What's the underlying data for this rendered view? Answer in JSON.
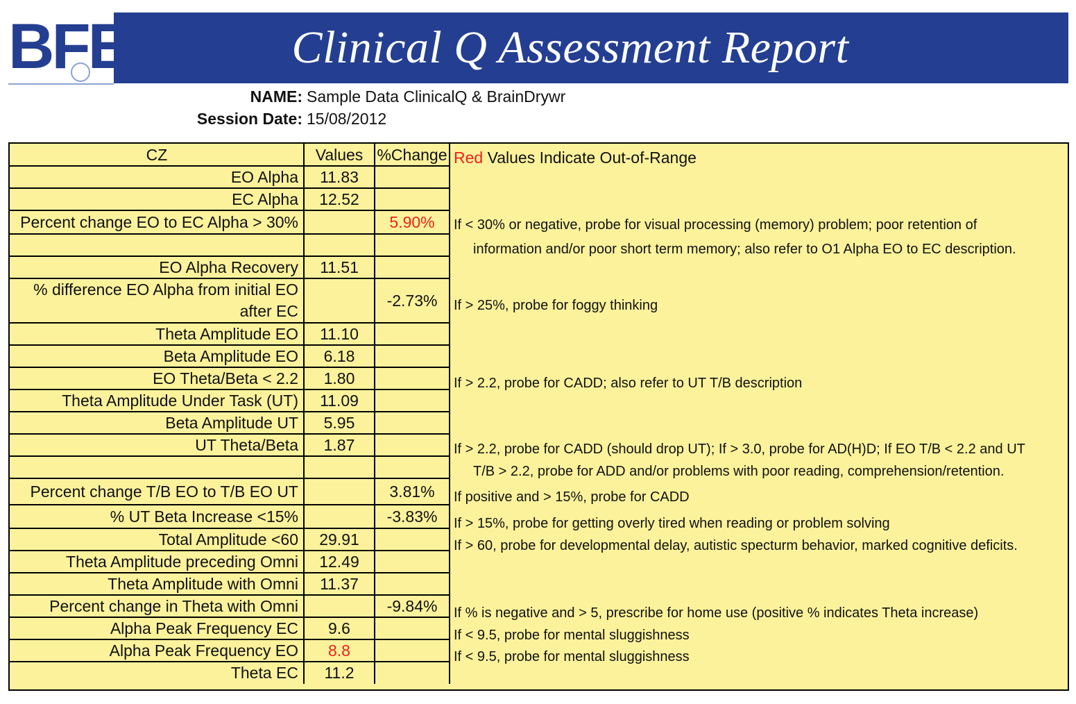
{
  "header": {
    "logo_text": "BFE",
    "title": "Clinical Q Assessment Report"
  },
  "meta": {
    "name_label": "NAME:",
    "name_value": "Sample Data ClinicalQ & BrainDrywr",
    "date_label": "Session Date:",
    "date_value": "15/08/2012"
  },
  "table": {
    "headers": {
      "site": "CZ",
      "values": "Values",
      "change": "%Change",
      "legend_red": "Red",
      "legend_rest": " Values Indicate Out-of-Range"
    },
    "rows": [
      {
        "label": "EO Alpha",
        "value": "11.83",
        "change": ""
      },
      {
        "label": "EC Alpha",
        "value": "12.52",
        "change": ""
      },
      {
        "label": "Percent change EO to EC Alpha > 30%",
        "value": "",
        "change": "5.90%",
        "change_out_of_range": true
      },
      {
        "label": "",
        "value": "",
        "change": ""
      },
      {
        "label": "EO Alpha Recovery",
        "value": "11.51",
        "change": ""
      },
      {
        "label": "% difference EO Alpha from initial EO",
        "label_line2": "after EC",
        "value": "",
        "change": "-2.73%"
      },
      {
        "label": "Theta Amplitude EO",
        "value": "11.10",
        "change": ""
      },
      {
        "label": "Beta Amplitude EO",
        "value": "6.18",
        "change": ""
      },
      {
        "label": "EO Theta/Beta < 2.2",
        "value": "1.80",
        "change": ""
      },
      {
        "label": "Theta Amplitude Under Task (UT)",
        "value": "11.09",
        "change": ""
      },
      {
        "label": "Beta Amplitude UT",
        "value": "5.95",
        "change": ""
      },
      {
        "label": "UT Theta/Beta",
        "value": "1.87",
        "change": ""
      },
      {
        "label": "",
        "value": "",
        "change": ""
      },
      {
        "label": "Percent change T/B EO to T/B EO UT",
        "value": "",
        "change": "3.81%"
      },
      {
        "label": "% UT Beta Increase <15%",
        "value": "",
        "change": "-3.83%"
      },
      {
        "label": "Total Amplitude <60",
        "value": "29.91",
        "change": ""
      },
      {
        "label": "Theta Amplitude preceding Omni",
        "value": "12.49",
        "change": ""
      },
      {
        "label": "Theta Amplitude with Omni",
        "value": "11.37",
        "change": ""
      },
      {
        "label": "Percent change in Theta with Omni",
        "value": "",
        "change": "-9.84%"
      },
      {
        "label": "Alpha Peak Frequency EC",
        "value": "9.6",
        "change": ""
      },
      {
        "label": "Alpha Peak Frequency EO",
        "value": "8.8",
        "change": "",
        "value_out_of_range": true
      },
      {
        "label": "Theta EC",
        "value": "11.2",
        "change": ""
      }
    ],
    "descriptions": [
      "If < 30% or negative, probe for visual processing (memory) problem; poor retention of",
      "information and/or poor short term memory; also refer to O1 Alpha EO to EC description.",
      "If > 25%, probe for foggy thinking",
      "If > 2.2, probe for CADD; also refer to UT T/B description",
      "If > 2.2, probe for CADD (should drop UT); If > 3.0, probe for AD(H)D; If EO T/B < 2.2 and UT",
      "T/B > 2.2, probe for ADD and/or problems with poor reading, comprehension/retention.",
      "If positive and > 15%, probe for CADD",
      "If > 15%, probe for getting overly tired when reading or problem solving",
      "If > 60, probe for developmental delay, autistic specturm behavior, marked cognitive deficits.",
      "If % is negative and > 5, prescribe for home use (positive % indicates Theta increase)",
      "If < 9.5, probe for mental sluggishness",
      "If < 9.5, probe for mental sluggishness"
    ]
  },
  "colors": {
    "banner": "#243f91",
    "table_bg": "#fcf29c",
    "out_of_range": "#e8241c"
  }
}
